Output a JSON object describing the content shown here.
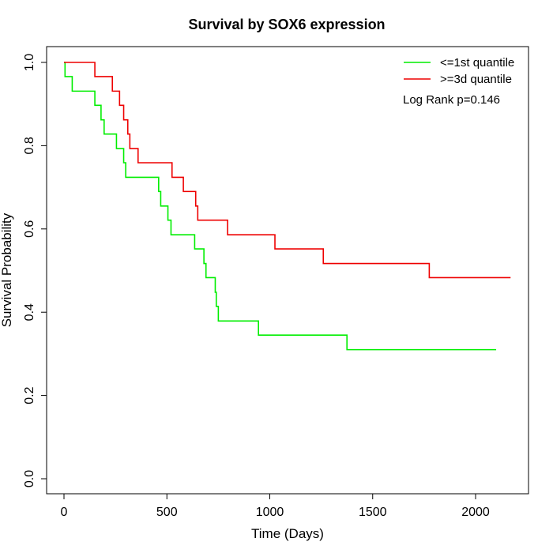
{
  "chart_data": {
    "type": "line",
    "title": "Survival by SOX6 expression",
    "xlabel": "Time (Days)",
    "ylabel": "Survival Probability",
    "xlim": [
      0,
      2200
    ],
    "ylim": [
      0,
      1
    ],
    "x_ticks": [
      0,
      500,
      1000,
      1500,
      2000
    ],
    "x_tick_labels": [
      "0",
      "500",
      "1000",
      "1500",
      "2000"
    ],
    "y_ticks": [
      0,
      0.2,
      0.4,
      0.6,
      0.8,
      1.0
    ],
    "y_tick_labels": [
      "0.0",
      "0.2",
      "0.4",
      "0.6",
      "0.8",
      "1.0"
    ],
    "grid": false,
    "legend_position": "top-right",
    "annotation": "Log Rank p=0.146",
    "series": [
      {
        "name": "<=1st quantile",
        "color": "#00ee00",
        "step": true,
        "x": [
          0,
          5,
          40,
          150,
          180,
          195,
          255,
          290,
          300,
          460,
          470,
          505,
          520,
          635,
          680,
          690,
          735,
          740,
          750,
          945,
          1375,
          2100
        ],
        "y": [
          1.0,
          0.966,
          0.931,
          0.897,
          0.862,
          0.828,
          0.793,
          0.759,
          0.724,
          0.69,
          0.655,
          0.621,
          0.586,
          0.552,
          0.517,
          0.483,
          0.448,
          0.414,
          0.379,
          0.345,
          0.31,
          0.31
        ]
      },
      {
        "name": ">=3d quantile",
        "color": "#ee0000",
        "step": true,
        "x": [
          0,
          150,
          235,
          270,
          290,
          310,
          320,
          340,
          360,
          525,
          580,
          640,
          650,
          795,
          1025,
          1260,
          1775,
          2170
        ],
        "y": [
          1.0,
          0.966,
          0.931,
          0.897,
          0.862,
          0.828,
          0.793,
          0.793,
          0.759,
          0.724,
          0.69,
          0.655,
          0.621,
          0.586,
          0.552,
          0.517,
          0.483,
          0.483
        ]
      }
    ]
  }
}
